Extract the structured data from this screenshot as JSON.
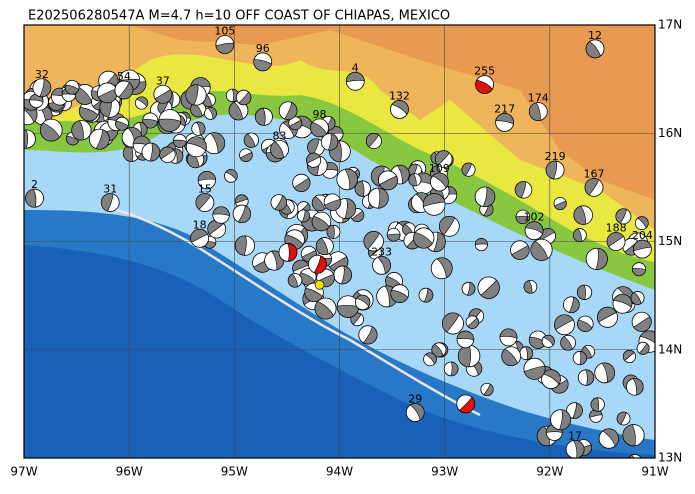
{
  "map": {
    "title": "E202506280547A M=4.7 h=10 OFF COAST OF CHIAPAS, MEXICO",
    "xlim": [
      -97,
      -91
    ],
    "ylim": [
      13,
      17
    ],
    "xticks": [
      {
        "value": -97,
        "label": "97W"
      },
      {
        "value": -96,
        "label": "96W"
      },
      {
        "value": -95,
        "label": "95W"
      },
      {
        "value": -94,
        "label": "94W"
      },
      {
        "value": -93,
        "label": "93W"
      },
      {
        "value": -92,
        "label": "92W"
      },
      {
        "value": -91,
        "label": "91W"
      }
    ],
    "yticks": [
      {
        "value": 13,
        "label": "13N"
      },
      {
        "value": 14,
        "label": "14N"
      },
      {
        "value": 15,
        "label": "15N"
      },
      {
        "value": 16,
        "label": "16N"
      },
      {
        "value": 17,
        "label": "17N"
      }
    ],
    "events": [
      {
        "label": "255",
        "lon": -92.62,
        "lat": 16.45,
        "highlight": true
      },
      {
        "label": "12",
        "lon": -91.57,
        "lat": 16.78
      },
      {
        "label": "174",
        "lon": -92.11,
        "lat": 16.2
      },
      {
        "label": "219",
        "lon": -91.95,
        "lat": 15.66
      },
      {
        "label": "167",
        "lon": -91.58,
        "lat": 15.5
      },
      {
        "label": "188",
        "lon": -91.37,
        "lat": 15.0
      },
      {
        "label": "204",
        "lon": -91.12,
        "lat": 14.93
      },
      {
        "label": "217",
        "lon": -92.43,
        "lat": 16.1
      },
      {
        "label": "132",
        "lon": -93.43,
        "lat": 16.22
      },
      {
        "label": "29",
        "lon": -93.28,
        "lat": 13.42
      },
      {
        "label": "17",
        "lon": -91.76,
        "lat": 13.08
      },
      {
        "label": "32",
        "lon": -96.83,
        "lat": 16.42
      },
      {
        "label": "54",
        "lon": -96.05,
        "lat": 16.4
      },
      {
        "label": "37",
        "lon": -95.68,
        "lat": 16.36
      },
      {
        "label": "105",
        "lon": -95.09,
        "lat": 16.82
      },
      {
        "label": "96",
        "lon": -94.73,
        "lat": 16.66
      },
      {
        "label": "98",
        "lon": -94.19,
        "lat": 16.05
      },
      {
        "label": "83",
        "lon": -94.57,
        "lat": 15.85
      },
      {
        "label": "2",
        "lon": -96.9,
        "lat": 15.4
      },
      {
        "label": "31",
        "lon": -96.18,
        "lat": 15.36
      },
      {
        "label": "15",
        "lon": -95.28,
        "lat": 15.36
      },
      {
        "label": "18",
        "lon": -95.33,
        "lat": 15.03
      },
      {
        "label": "4",
        "lon": -93.85,
        "lat": 16.48
      },
      {
        "label": "102",
        "lon": -92.15,
        "lat": 15.1
      },
      {
        "label": "109",
        "lon": -93.05,
        "lat": 15.55
      },
      {
        "label": "233",
        "lon": -93.6,
        "lat": 14.78
      },
      {
        "label": "",
        "lon": -94.49,
        "lat": 14.9,
        "highlight": true
      },
      {
        "label": "",
        "lon": -94.21,
        "lat": 14.79,
        "highlight": true
      },
      {
        "label": "",
        "lon": -92.8,
        "lat": 13.5,
        "highlight": true
      }
    ],
    "target": {
      "lon": -94.19,
      "lat": 14.6
    }
  }
}
